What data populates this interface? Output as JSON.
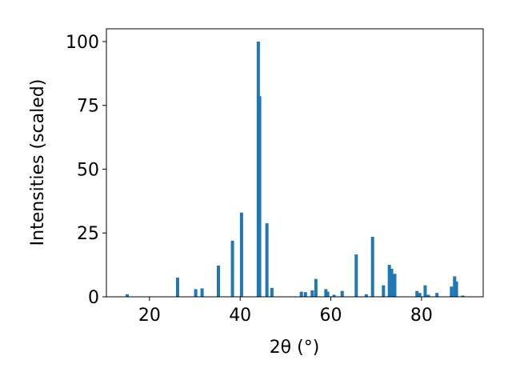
{
  "chart_data": {
    "type": "bar",
    "xlabel": "2θ (°)",
    "ylabel": "Intensities (scaled)",
    "x": [
      15.1,
      26.2,
      30.2,
      31.6,
      35.2,
      38.3,
      40.3,
      44.0,
      44.3,
      45.9,
      47.0,
      53.5,
      54.4,
      55.9,
      56.7,
      58.9,
      59.3,
      60.7,
      62.5,
      65.6,
      67.8,
      69.2,
      71.6,
      72.9,
      73.4,
      74.1,
      79.0,
      79.6,
      80.8,
      81.5,
      83.4,
      86.6,
      87.3,
      87.7,
      89.1
    ],
    "values": [
      1,
      7.5,
      3,
      3.3,
      12.2,
      22,
      33,
      100,
      78.6,
      28.8,
      3.5,
      2,
      1.8,
      2.5,
      7,
      3,
      2,
      0.8,
      2.3,
      16.6,
      1,
      23.5,
      4.5,
      12.5,
      11,
      9,
      2.3,
      1.5,
      4.5,
      0.8,
      1.5,
      4,
      8,
      6,
      0.5
    ],
    "color": "#1f77b4",
    "xlim": [
      10.5,
      93.6
    ],
    "ylim": [
      0,
      105
    ],
    "xticks": [
      20,
      40,
      60,
      80
    ],
    "yticks": [
      0,
      25,
      50,
      75,
      100
    ]
  }
}
